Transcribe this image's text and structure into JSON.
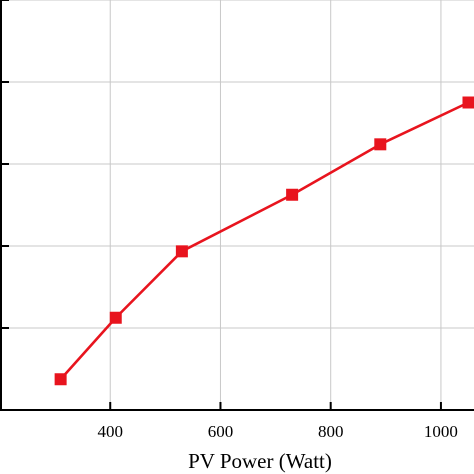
{
  "chart_data": {
    "type": "line",
    "xlabel": "PV Power (Watt)",
    "ylabel": "",
    "title": "",
    "xlim": [
      200,
      1060
    ],
    "ylim": [
      0,
      1
    ],
    "grid": true,
    "x_ticks": [
      400,
      600,
      800,
      1000
    ],
    "x_tick_labels": [
      "400",
      "600",
      "800",
      "1000"
    ],
    "y_ticks": [
      0.2,
      0.4,
      0.6,
      0.8,
      1.0
    ],
    "series": [
      {
        "color": "#e8141e",
        "marker": "square",
        "points": [
          {
            "x": 310,
            "y": 0.075
          },
          {
            "x": 410,
            "y": 0.225
          },
          {
            "x": 530,
            "y": 0.387
          },
          {
            "x": 730,
            "y": 0.525
          },
          {
            "x": 890,
            "y": 0.648
          },
          {
            "x": 1050,
            "y": 0.75
          }
        ]
      }
    ]
  }
}
